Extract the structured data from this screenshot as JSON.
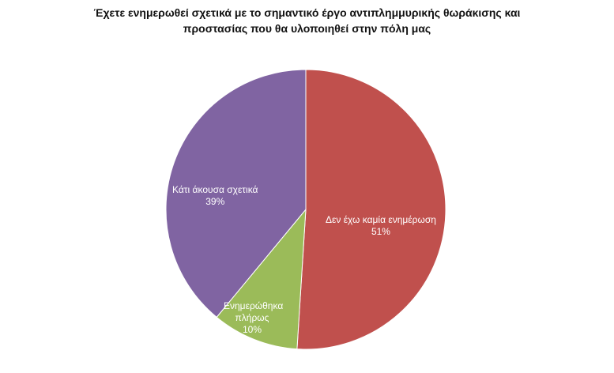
{
  "chart_data": {
    "type": "pie",
    "title_lines": [
      "Έχετε ενημερωθεί σχετικά με το σημαντικό έργο αντιπλημμυρικής θωράκισης και",
      "προστασίας που θα υλοποιηθεί στην πόλη μας"
    ],
    "slices": [
      {
        "label": "Δεν έχω καμία ενημέρωση",
        "value": 51,
        "value_label": "51%",
        "color": "#c0504d"
      },
      {
        "label": "Ενημερώθηκα πλήρως",
        "value": 10,
        "value_label": "10%",
        "color": "#9bbb59"
      },
      {
        "label": "Κάτι άκουσα σχετικά",
        "value": 39,
        "value_label": "39%",
        "color": "#8064a2"
      }
    ],
    "start_angle_deg": 0,
    "direction": "clockwise",
    "legend": "none",
    "data_labels": "inside"
  }
}
